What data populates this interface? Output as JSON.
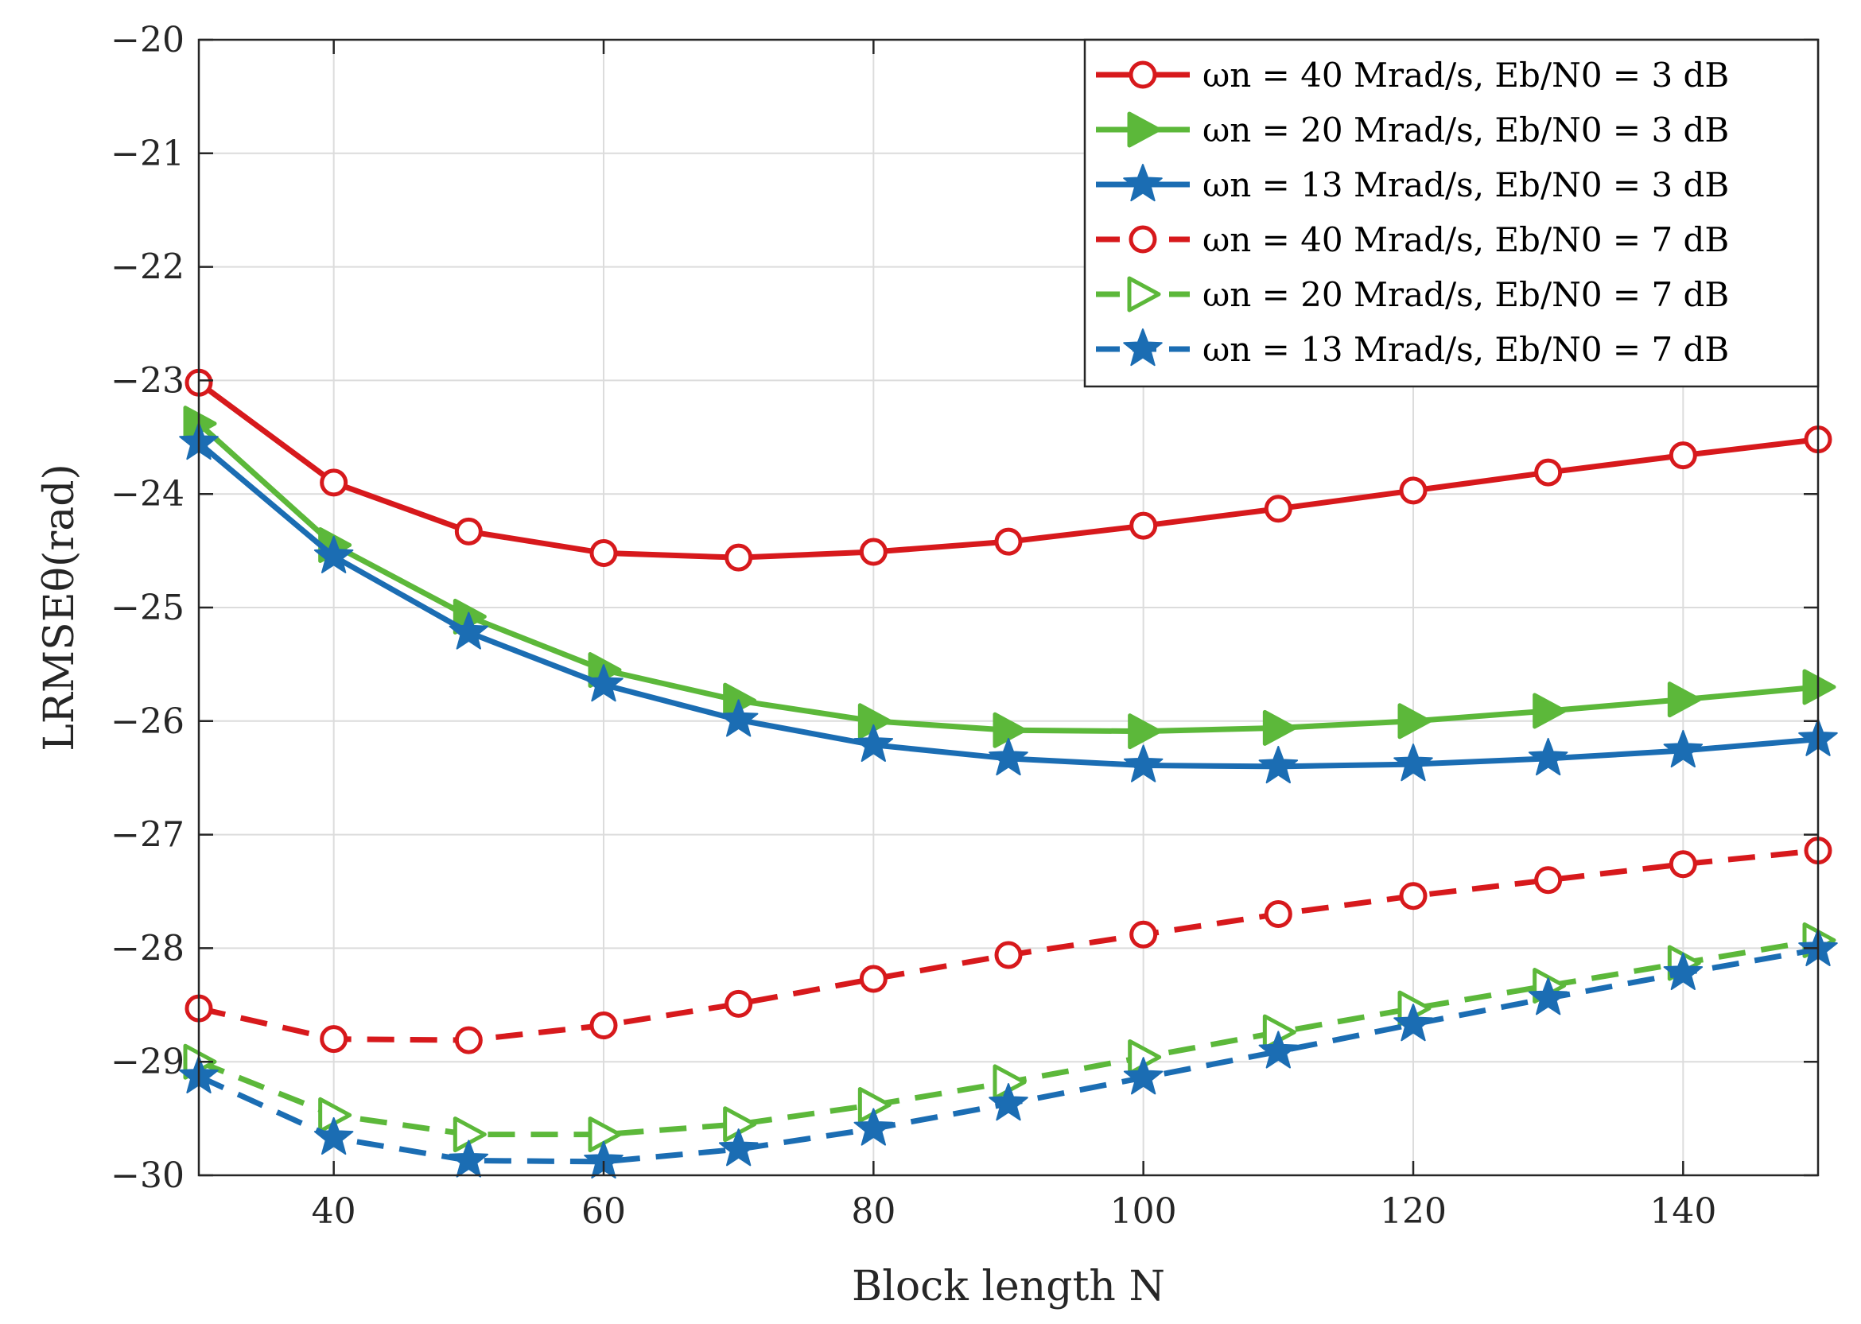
{
  "chart_data": {
    "type": "line",
    "xlabel": "Block length N",
    "ylabel": "LRMSEθ(rad)",
    "xlim": [
      30,
      150
    ],
    "ylim": [
      -30,
      -20
    ],
    "xticks": [
      40,
      60,
      80,
      100,
      120,
      140
    ],
    "yticks": [
      -20,
      -21,
      -22,
      -23,
      -24,
      -25,
      -26,
      -27,
      -28,
      -29,
      -30
    ],
    "x_tick_labels": [
      "40",
      "60",
      "80",
      "100",
      "120",
      "140"
    ],
    "y_tick_labels": [
      "−20",
      "−21",
      "−22",
      "−23",
      "−24",
      "−25",
      "−26",
      "−27",
      "−28",
      "−29",
      "−30"
    ],
    "grid": true,
    "legend_position": "top-right",
    "x": [
      30,
      40,
      50,
      60,
      70,
      80,
      90,
      100,
      110,
      120,
      130,
      140,
      150
    ],
    "series": [
      {
        "name": "ωn = 40 Mrad/s, Eb/N0 = 3 dB",
        "color": "#d7191c",
        "marker": "circle",
        "dash": "solid",
        "values": [
          -23.02,
          -23.9,
          -24.33,
          -24.52,
          -24.56,
          -24.51,
          -24.42,
          -24.28,
          -24.13,
          -23.97,
          -23.81,
          -23.66,
          -23.52
        ]
      },
      {
        "name": "ωn = 20 Mrad/s, Eb/N0 = 3 dB",
        "color": "#5cb83a",
        "marker": "triangle-right",
        "dash": "solid",
        "values": [
          -23.38,
          -24.45,
          -25.08,
          -25.55,
          -25.82,
          -26.0,
          -26.08,
          -26.09,
          -26.06,
          -26.0,
          -25.91,
          -25.81,
          -25.7
        ]
      },
      {
        "name": "ωn = 13 Mrad/s, Eb/N0 = 3 dB",
        "color": "#1b6db3",
        "marker": "star",
        "dash": "solid",
        "values": [
          -23.55,
          -24.55,
          -25.22,
          -25.68,
          -25.99,
          -26.21,
          -26.33,
          -26.39,
          -26.4,
          -26.38,
          -26.33,
          -26.26,
          -26.16
        ]
      },
      {
        "name": "ωn = 40 Mrad/s, Eb/N0 = 7 dB",
        "color": "#d7191c",
        "marker": "circle",
        "dash": "dashed",
        "values": [
          -28.53,
          -28.8,
          -28.81,
          -28.68,
          -28.49,
          -28.27,
          -28.06,
          -27.88,
          -27.7,
          -27.54,
          -27.4,
          -27.26,
          -27.14
        ]
      },
      {
        "name": "ωn = 20 Mrad/s, Eb/N0 = 7 dB",
        "color": "#5cb83a",
        "marker": "triangle-right",
        "dash": "dashed",
        "values": [
          -29.0,
          -29.47,
          -29.64,
          -29.64,
          -29.55,
          -29.38,
          -29.18,
          -28.96,
          -28.74,
          -28.53,
          -28.33,
          -28.13,
          -27.93
        ]
      },
      {
        "name": "ωn = 13 Mrad/s, Eb/N0 = 7 dB",
        "color": "#1b6db3",
        "marker": "star",
        "dash": "dashed",
        "values": [
          -29.13,
          -29.67,
          -29.87,
          -29.88,
          -29.77,
          -29.59,
          -29.37,
          -29.14,
          -28.91,
          -28.67,
          -28.44,
          -28.22,
          -28.01
        ]
      }
    ]
  }
}
